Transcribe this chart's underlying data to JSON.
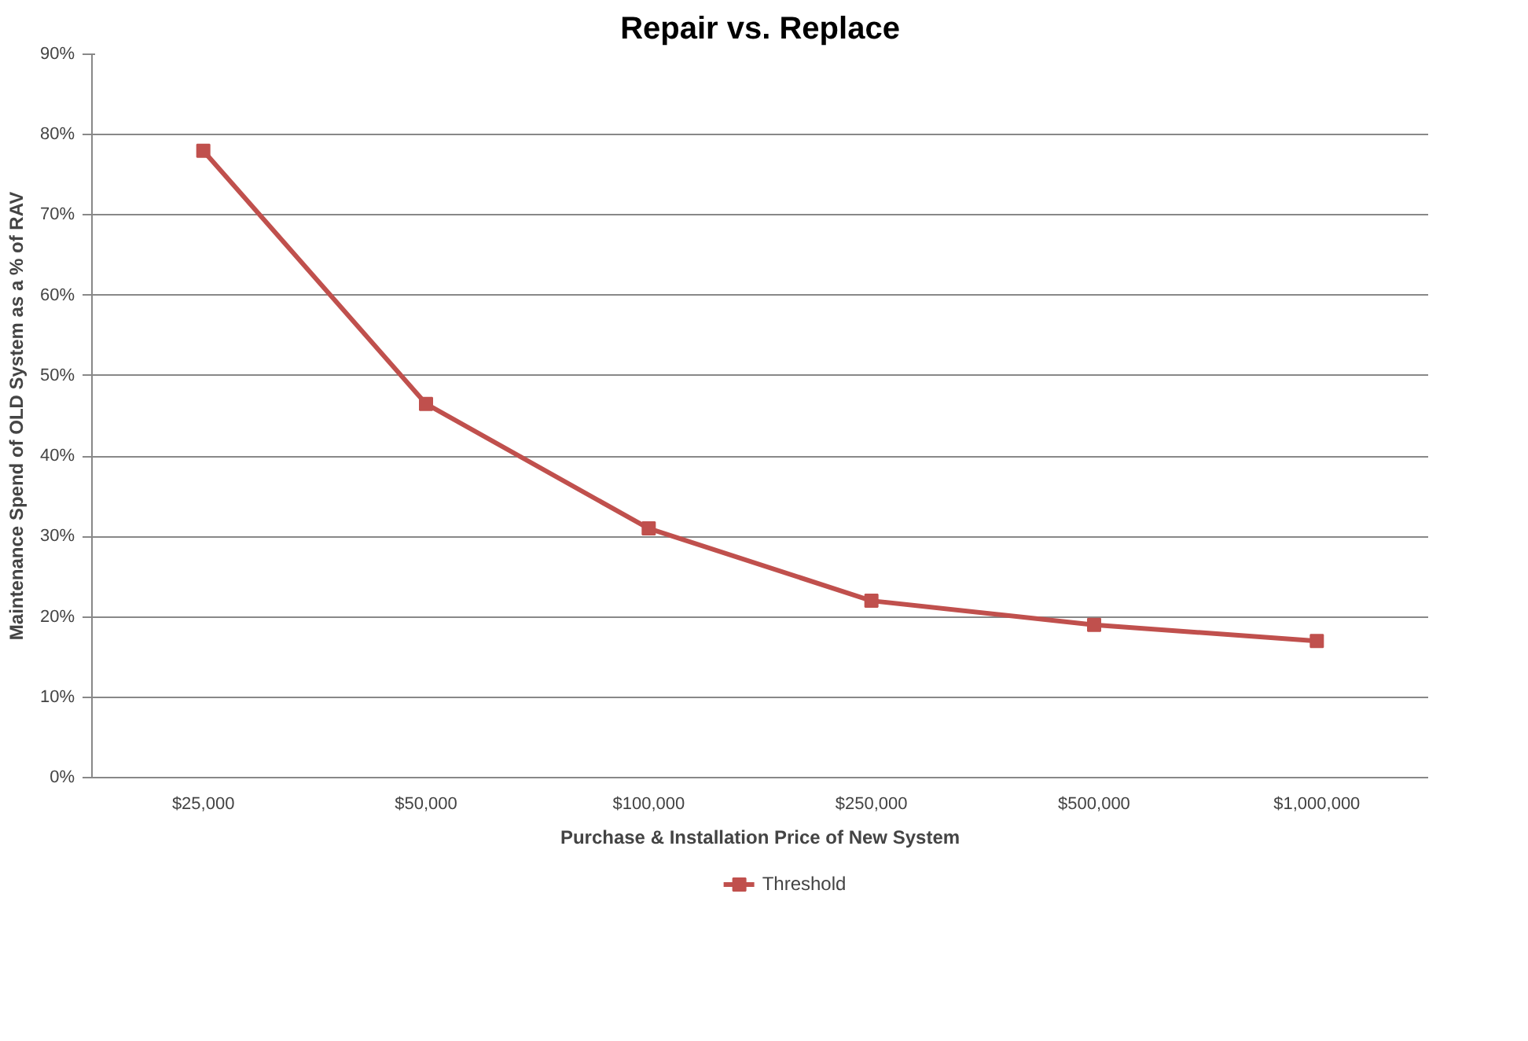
{
  "chart_data": {
    "type": "line",
    "title": "Repair vs. Replace",
    "xlabel": "Purchase & Installation Price of New System",
    "ylabel": "Maintenance Spend of OLD System as a % of RAV",
    "categories": [
      "$25,000",
      "$50,000",
      "$100,000",
      "$250,000",
      "$500,000",
      "$1,000,000"
    ],
    "series": [
      {
        "name": "Threshold",
        "color": "#c0504d",
        "values": [
          78,
          46.5,
          31,
          22,
          19,
          17
        ]
      }
    ],
    "ylim": [
      0,
      90
    ],
    "yticks": [
      {
        "value": 0,
        "label": "0%"
      },
      {
        "value": 10,
        "label": "10%"
      },
      {
        "value": 20,
        "label": "20%"
      },
      {
        "value": 30,
        "label": "30%"
      },
      {
        "value": 40,
        "label": "40%"
      },
      {
        "value": 50,
        "label": "50%"
      },
      {
        "value": 60,
        "label": "60%"
      },
      {
        "value": 70,
        "label": "70%"
      },
      {
        "value": 80,
        "label": "80%"
      },
      {
        "value": 90,
        "label": "90%"
      }
    ],
    "grid": "y",
    "legend": "bottom",
    "marker": "square",
    "line_style": "solid"
  }
}
